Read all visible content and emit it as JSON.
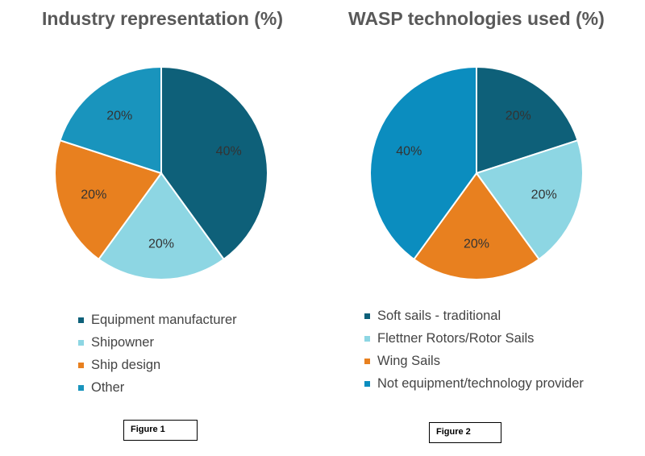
{
  "chart_data": [
    {
      "type": "pie",
      "title": "Industry representation (%)",
      "categories": [
        "Equipment manufacturer",
        "Shipowner",
        "Ship design",
        "Other"
      ],
      "values": [
        40,
        20,
        20,
        20
      ],
      "labels": [
        "40%",
        "20%",
        "20%",
        "20%"
      ],
      "colors": [
        "#0e6079",
        "#8dd6e3",
        "#e8801f",
        "#1994bd"
      ],
      "legend_position": "bottom",
      "caption": "Figure 1"
    },
    {
      "type": "pie",
      "title": "WASP technologies used (%)",
      "categories": [
        "Soft sails - traditional",
        "Flettner Rotors/Rotor Sails",
        "Wing Sails",
        "Not equipment/technology provider"
      ],
      "values": [
        20,
        20,
        20,
        40
      ],
      "labels": [
        "20%",
        "20%",
        "20%",
        "40%"
      ],
      "colors": [
        "#0e6079",
        "#8dd6e3",
        "#e8801f",
        "#0b8dbf"
      ],
      "legend_position": "bottom",
      "caption": "Figure 2"
    }
  ]
}
